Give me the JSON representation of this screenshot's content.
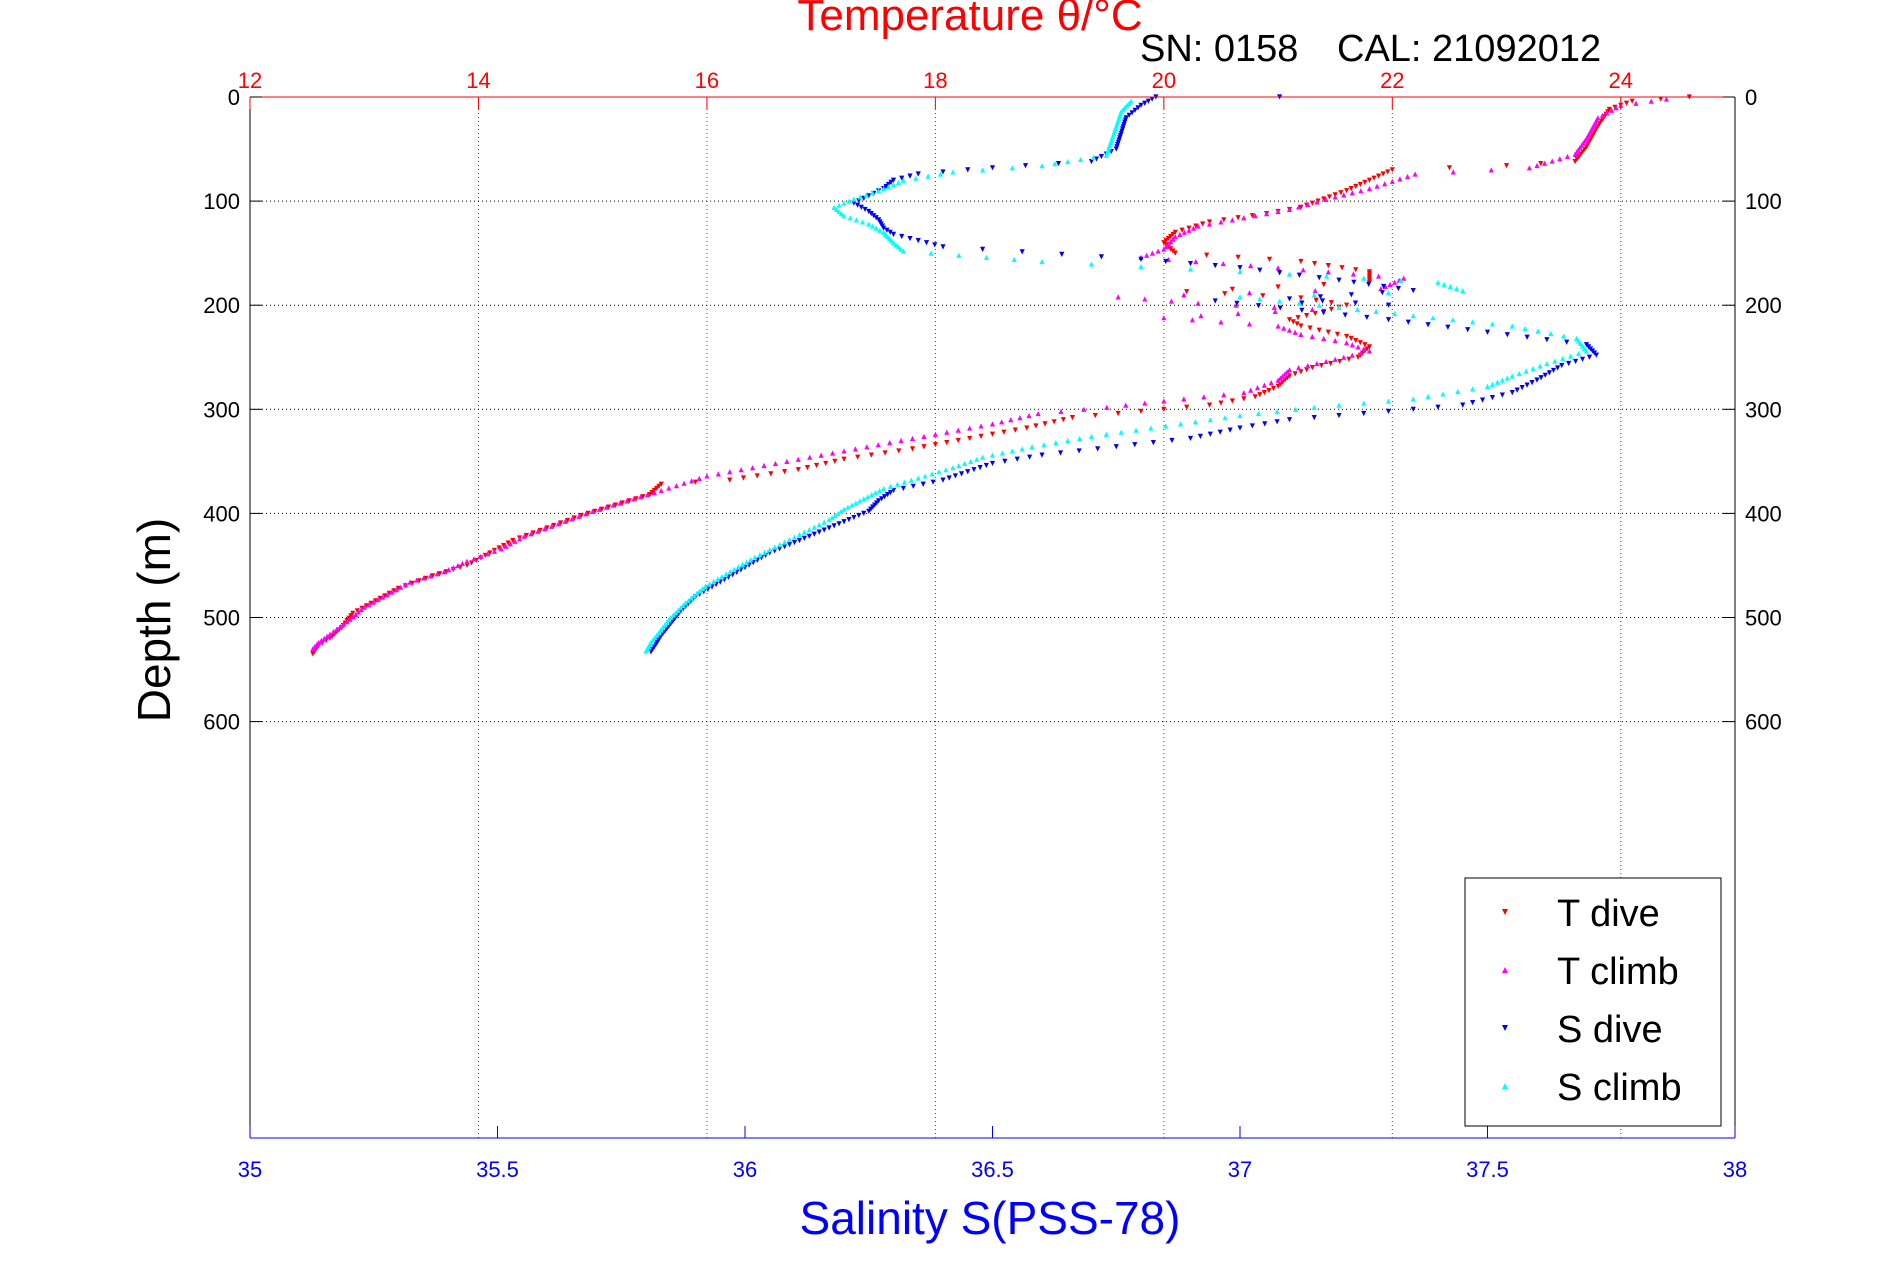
{
  "colors": {
    "t_dive": "#ff0000",
    "t_climb": "#ff00ff",
    "s_dive": "#0000ff",
    "s_climb": "#00ffff",
    "temperature_axis": "#ff0000",
    "salinity_axis": "#0000ff",
    "depth_axis": "#000000",
    "header_text": "#000000"
  },
  "header": {
    "serial_label": "SN: 0158",
    "cal_label": "CAL: 21092012"
  },
  "chart_data": {
    "type": "scatter",
    "title": "Temperature θ/°C",
    "y_reversed": true,
    "grid": true,
    "legend_position": "bottom-right",
    "axes": {
      "salinity": {
        "label": "Salinity S(PSS-78)",
        "range": [
          35,
          38
        ],
        "ticks": [
          35,
          35.5,
          36,
          36.5,
          37,
          37.5,
          38
        ],
        "tick_labels": [
          "35",
          "35.5",
          "36",
          "36.5",
          "37",
          "37.5",
          "38"
        ]
      },
      "temperature": {
        "label": "Temperature θ/°C",
        "range": [
          12,
          25
        ],
        "ticks": [
          12,
          14,
          16,
          18,
          20,
          22,
          24
        ],
        "tick_labels": [
          "12",
          "14",
          "16",
          "18",
          "20",
          "22",
          "24"
        ]
      },
      "depth": {
        "label": "Depth (m)",
        "range": [
          0,
          1000
        ],
        "ticks": [
          0,
          100,
          200,
          300,
          400,
          500,
          600
        ],
        "tick_labels": [
          "0",
          "100",
          "200",
          "300",
          "400",
          "500",
          "600"
        ]
      }
    },
    "series": [
      {
        "name": "T dive",
        "axis": "temperature",
        "marker": "triangle-down",
        "points": [
          [
            24.6,
            0
          ],
          [
            24.1,
            4
          ],
          [
            23.9,
            12
          ],
          [
            23.8,
            28
          ],
          [
            23.7,
            48
          ],
          [
            23.6,
            62
          ],
          [
            23.0,
            66
          ],
          [
            22.0,
            70
          ],
          [
            21.8,
            80
          ],
          [
            21.6,
            90
          ],
          [
            21.4,
            98
          ],
          [
            21.2,
            106
          ],
          [
            20.9,
            112
          ],
          [
            20.4,
            120
          ],
          [
            20.1,
            130
          ],
          [
            20.0,
            140
          ],
          [
            20.1,
            150
          ],
          [
            21.2,
            158
          ],
          [
            21.8,
            168
          ],
          [
            21.8,
            178
          ],
          [
            20.2,
            187
          ],
          [
            21.2,
            193
          ],
          [
            21.6,
            200
          ],
          [
            21.4,
            206
          ],
          [
            21.1,
            214
          ],
          [
            21.2,
            220
          ],
          [
            21.6,
            230
          ],
          [
            21.8,
            240
          ],
          [
            21.7,
            250
          ],
          [
            21.3,
            260
          ],
          [
            21.1,
            268
          ],
          [
            21.0,
            278
          ],
          [
            20.8,
            288
          ],
          [
            20.4,
            296
          ],
          [
            19.8,
            302
          ],
          [
            19.2,
            308
          ],
          [
            18.8,
            318
          ],
          [
            18.3,
            328
          ],
          [
            17.8,
            338
          ],
          [
            17.2,
            348
          ],
          [
            16.8,
            358
          ],
          [
            16.2,
            368
          ],
          [
            15.6,
            372
          ],
          [
            15.5,
            382
          ],
          [
            15.2,
            392
          ],
          [
            14.9,
            402
          ],
          [
            14.6,
            414
          ],
          [
            14.3,
            426
          ],
          [
            14.1,
            438
          ],
          [
            13.9,
            450
          ],
          [
            13.6,
            460
          ],
          [
            13.3,
            472
          ],
          [
            13.1,
            484
          ],
          [
            12.9,
            496
          ],
          [
            12.8,
            510
          ],
          [
            12.7,
            520
          ],
          [
            12.6,
            527
          ],
          [
            12.55,
            535
          ]
        ]
      },
      {
        "name": "T climb",
        "axis": "temperature",
        "marker": "triangle-up",
        "points": [
          [
            24.4,
            2
          ],
          [
            24.0,
            8
          ],
          [
            23.8,
            20
          ],
          [
            23.7,
            40
          ],
          [
            23.6,
            55
          ],
          [
            23.2,
            68
          ],
          [
            22.2,
            74
          ],
          [
            21.8,
            88
          ],
          [
            21.5,
            96
          ],
          [
            21.1,
            108
          ],
          [
            20.8,
            114
          ],
          [
            20.3,
            124
          ],
          [
            20.1,
            134
          ],
          [
            20.0,
            146
          ],
          [
            19.8,
            154
          ],
          [
            21.0,
            164
          ],
          [
            22.1,
            174
          ],
          [
            21.9,
            184
          ],
          [
            19.6,
            192
          ],
          [
            20.3,
            198
          ],
          [
            21.3,
            204
          ],
          [
            20.0,
            212
          ],
          [
            21.0,
            220
          ],
          [
            21.2,
            228
          ],
          [
            21.6,
            236
          ],
          [
            21.8,
            244
          ],
          [
            21.5,
            252
          ],
          [
            21.1,
            262
          ],
          [
            21.0,
            272
          ],
          [
            20.7,
            284
          ],
          [
            20.0,
            292
          ],
          [
            19.5,
            298
          ],
          [
            18.9,
            304
          ],
          [
            18.5,
            314
          ],
          [
            18.0,
            324
          ],
          [
            17.5,
            334
          ],
          [
            17.0,
            344
          ],
          [
            16.5,
            354
          ],
          [
            16.0,
            364
          ],
          [
            15.6,
            378
          ],
          [
            15.3,
            388
          ],
          [
            15.0,
            398
          ],
          [
            14.7,
            410
          ],
          [
            14.4,
            422
          ],
          [
            14.2,
            434
          ],
          [
            13.9,
            446
          ],
          [
            13.7,
            456
          ],
          [
            13.4,
            466
          ],
          [
            13.2,
            478
          ],
          [
            13.0,
            490
          ],
          [
            12.85,
            504
          ],
          [
            12.7,
            516
          ],
          [
            12.6,
            524
          ],
          [
            12.55,
            530
          ]
        ]
      },
      {
        "name": "S dive",
        "axis": "salinity",
        "marker": "triangle-down",
        "points": [
          [
            37.08,
            0
          ],
          [
            36.83,
            0
          ],
          [
            36.8,
            8
          ],
          [
            36.77,
            20
          ],
          [
            36.76,
            35
          ],
          [
            36.75,
            50
          ],
          [
            36.7,
            62
          ],
          [
            36.5,
            68
          ],
          [
            36.35,
            74
          ],
          [
            36.3,
            80
          ],
          [
            36.28,
            88
          ],
          [
            36.25,
            95
          ],
          [
            36.22,
            102
          ],
          [
            36.25,
            110
          ],
          [
            36.27,
            118
          ],
          [
            36.28,
            126
          ],
          [
            36.3,
            132
          ],
          [
            36.35,
            138
          ],
          [
            36.4,
            144
          ],
          [
            36.8,
            156
          ],
          [
            37.0,
            164
          ],
          [
            37.2,
            176
          ],
          [
            37.35,
            186
          ],
          [
            37.1,
            194
          ],
          [
            37.3,
            200
          ],
          [
            36.95,
            196
          ],
          [
            37.3,
            214
          ],
          [
            37.5,
            226
          ],
          [
            37.7,
            238
          ],
          [
            37.72,
            248
          ],
          [
            37.65,
            258
          ],
          [
            37.6,
            272
          ],
          [
            37.55,
            284
          ],
          [
            37.45,
            296
          ],
          [
            37.25,
            304
          ],
          [
            37.1,
            310
          ],
          [
            37.0,
            318
          ],
          [
            36.9,
            328
          ],
          [
            36.75,
            336
          ],
          [
            36.6,
            344
          ],
          [
            36.5,
            352
          ],
          [
            36.45,
            360
          ],
          [
            36.4,
            368
          ],
          [
            36.3,
            378
          ],
          [
            36.27,
            388
          ],
          [
            36.25,
            398
          ],
          [
            36.2,
            408
          ],
          [
            36.15,
            418
          ],
          [
            36.1,
            428
          ],
          [
            36.05,
            438
          ],
          [
            36.0,
            452
          ],
          [
            35.95,
            466
          ],
          [
            35.9,
            480
          ],
          [
            35.87,
            494
          ],
          [
            35.85,
            506
          ],
          [
            35.83,
            518
          ],
          [
            35.82,
            526
          ],
          [
            35.81,
            533
          ]
        ]
      },
      {
        "name": "S climb",
        "axis": "salinity",
        "marker": "triangle-up",
        "points": [
          [
            36.78,
            4
          ],
          [
            36.76,
            14
          ],
          [
            36.75,
            28
          ],
          [
            36.74,
            42
          ],
          [
            36.73,
            56
          ],
          [
            36.6,
            66
          ],
          [
            36.42,
            72
          ],
          [
            36.32,
            80
          ],
          [
            36.27,
            90
          ],
          [
            36.22,
            98
          ],
          [
            36.18,
            106
          ],
          [
            36.2,
            114
          ],
          [
            36.25,
            122
          ],
          [
            36.28,
            130
          ],
          [
            36.3,
            140
          ],
          [
            36.32,
            148
          ],
          [
            36.6,
            158
          ],
          [
            37.1,
            170
          ],
          [
            37.4,
            178
          ],
          [
            37.45,
            186
          ],
          [
            37.0,
            192
          ],
          [
            37.2,
            202
          ],
          [
            37.35,
            210
          ],
          [
            37.55,
            220
          ],
          [
            37.68,
            232
          ],
          [
            37.7,
            244
          ],
          [
            37.62,
            256
          ],
          [
            37.55,
            268
          ],
          [
            37.5,
            278
          ],
          [
            37.35,
            290
          ],
          [
            37.15,
            298
          ],
          [
            37.0,
            306
          ],
          [
            36.85,
            316
          ],
          [
            36.7,
            326
          ],
          [
            36.58,
            336
          ],
          [
            36.48,
            346
          ],
          [
            36.42,
            356
          ],
          [
            36.35,
            366
          ],
          [
            36.28,
            376
          ],
          [
            36.24,
            386
          ],
          [
            36.2,
            396
          ],
          [
            36.17,
            406
          ],
          [
            36.12,
            418
          ],
          [
            36.07,
            430
          ],
          [
            36.02,
            442
          ],
          [
            35.97,
            456
          ],
          [
            35.92,
            470
          ],
          [
            35.88,
            486
          ],
          [
            35.85,
            500
          ],
          [
            35.83,
            512
          ],
          [
            35.81,
            524
          ],
          [
            35.8,
            532
          ]
        ]
      }
    ]
  }
}
